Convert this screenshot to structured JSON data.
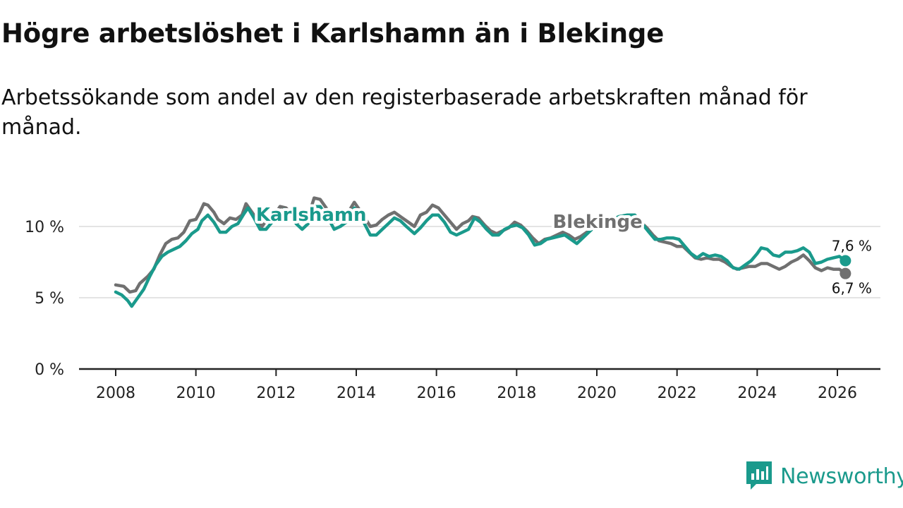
{
  "title": "Högre arbetslöshet i Karlshamn än i Blekinge",
  "subtitle": "Arbetssökande som andel av den registerbaserade arbetskraften månad för månad.",
  "brand": "Newsworthy",
  "colors": {
    "karlshamn": "#1a9a8c",
    "blekinge": "#707070",
    "grid": "#dcdcdc",
    "axis": "#222222"
  },
  "chart_data": {
    "type": "line",
    "title": "Högre arbetslöshet i Karlshamn än i Blekinge",
    "xlabel": "",
    "ylabel": "",
    "xlim": [
      2007.6,
      2027.1
    ],
    "ylim": [
      0,
      12.5
    ],
    "grid": true,
    "x_ticks": [
      2008,
      2010,
      2012,
      2014,
      2016,
      2018,
      2020,
      2022,
      2024,
      2026
    ],
    "x_tick_labels": [
      "2008",
      "2010",
      "2012",
      "2014",
      "2016",
      "2018",
      "2020",
      "2022",
      "2024",
      "2026"
    ],
    "y_ticks": [
      0,
      5,
      10
    ],
    "y_tick_labels": [
      "0 %",
      "5 %",
      "10 %"
    ],
    "series": [
      {
        "name": "Blekinge",
        "label": "Blekinge",
        "color": "#707070",
        "end_label": "6,7 %",
        "points": [
          [
            2008.0,
            5.9
          ],
          [
            2008.2,
            5.8
          ],
          [
            2008.35,
            5.4
          ],
          [
            2008.5,
            5.5
          ],
          [
            2008.6,
            6.0
          ],
          [
            2008.8,
            6.5
          ],
          [
            2008.95,
            7.0
          ],
          [
            2009.1,
            8.0
          ],
          [
            2009.25,
            8.8
          ],
          [
            2009.4,
            9.1
          ],
          [
            2009.55,
            9.2
          ],
          [
            2009.7,
            9.6
          ],
          [
            2009.85,
            10.4
          ],
          [
            2010.0,
            10.5
          ],
          [
            2010.1,
            11.0
          ],
          [
            2010.2,
            11.6
          ],
          [
            2010.3,
            11.5
          ],
          [
            2010.45,
            11.0
          ],
          [
            2010.55,
            10.5
          ],
          [
            2010.7,
            10.2
          ],
          [
            2010.85,
            10.6
          ],
          [
            2011.0,
            10.5
          ],
          [
            2011.15,
            10.8
          ],
          [
            2011.25,
            11.6
          ],
          [
            2011.35,
            11.2
          ],
          [
            2011.5,
            10.6
          ],
          [
            2011.65,
            10.0
          ],
          [
            2011.8,
            10.6
          ],
          [
            2011.95,
            10.8
          ],
          [
            2012.1,
            11.4
          ],
          [
            2012.25,
            11.3
          ],
          [
            2012.4,
            10.8
          ],
          [
            2012.55,
            10.3
          ],
          [
            2012.7,
            10.4
          ],
          [
            2012.85,
            11.1
          ],
          [
            2012.95,
            12.0
          ],
          [
            2013.1,
            11.9
          ],
          [
            2013.25,
            11.3
          ],
          [
            2013.45,
            10.3
          ],
          [
            2013.6,
            10.6
          ],
          [
            2013.8,
            11.0
          ],
          [
            2013.95,
            11.7
          ],
          [
            2014.15,
            10.9
          ],
          [
            2014.35,
            10.0
          ],
          [
            2014.5,
            10.1
          ],
          [
            2014.65,
            10.5
          ],
          [
            2014.8,
            10.8
          ],
          [
            2014.95,
            11.0
          ],
          [
            2015.15,
            10.6
          ],
          [
            2015.3,
            10.3
          ],
          [
            2015.45,
            10.0
          ],
          [
            2015.6,
            10.8
          ],
          [
            2015.75,
            11.0
          ],
          [
            2015.9,
            11.5
          ],
          [
            2016.05,
            11.3
          ],
          [
            2016.2,
            10.8
          ],
          [
            2016.35,
            10.3
          ],
          [
            2016.5,
            9.8
          ],
          [
            2016.65,
            10.2
          ],
          [
            2016.8,
            10.4
          ],
          [
            2016.9,
            10.7
          ],
          [
            2017.05,
            10.6
          ],
          [
            2017.2,
            10.1
          ],
          [
            2017.35,
            9.7
          ],
          [
            2017.5,
            9.5
          ],
          [
            2017.65,
            9.7
          ],
          [
            2017.8,
            9.9
          ],
          [
            2017.95,
            10.3
          ],
          [
            2018.1,
            10.1
          ],
          [
            2018.25,
            9.7
          ],
          [
            2018.4,
            9.2
          ],
          [
            2018.55,
            8.8
          ],
          [
            2018.7,
            9.1
          ],
          [
            2018.85,
            9.2
          ],
          [
            2019.0,
            9.4
          ],
          [
            2019.15,
            9.6
          ],
          [
            2019.3,
            9.4
          ],
          [
            2019.45,
            9.1
          ],
          [
            2019.6,
            9.3
          ],
          [
            2019.75,
            9.6
          ],
          [
            2019.9,
            9.9
          ],
          [
            2020.1,
            10.1
          ],
          [
            2020.3,
            10.4
          ],
          [
            2020.5,
            10.6
          ],
          [
            2020.7,
            10.5
          ],
          [
            2020.9,
            10.5
          ],
          [
            2021.1,
            10.3
          ],
          [
            2021.25,
            9.9
          ],
          [
            2021.4,
            9.4
          ],
          [
            2021.55,
            9.0
          ],
          [
            2021.7,
            8.9
          ],
          [
            2021.85,
            8.8
          ],
          [
            2022.0,
            8.6
          ],
          [
            2022.15,
            8.6
          ],
          [
            2022.3,
            8.2
          ],
          [
            2022.45,
            7.8
          ],
          [
            2022.6,
            7.7
          ],
          [
            2022.75,
            7.8
          ],
          [
            2022.9,
            7.7
          ],
          [
            2023.05,
            7.7
          ],
          [
            2023.2,
            7.5
          ],
          [
            2023.35,
            7.2
          ],
          [
            2023.5,
            7.0
          ],
          [
            2023.65,
            7.1
          ],
          [
            2023.8,
            7.2
          ],
          [
            2023.95,
            7.2
          ],
          [
            2024.1,
            7.4
          ],
          [
            2024.25,
            7.4
          ],
          [
            2024.4,
            7.2
          ],
          [
            2024.55,
            7.0
          ],
          [
            2024.7,
            7.2
          ],
          [
            2024.85,
            7.5
          ],
          [
            2025.0,
            7.7
          ],
          [
            2025.15,
            8.0
          ],
          [
            2025.3,
            7.6
          ],
          [
            2025.45,
            7.1
          ],
          [
            2025.6,
            6.9
          ],
          [
            2025.75,
            7.1
          ],
          [
            2025.9,
            7.0
          ],
          [
            2026.05,
            7.0
          ],
          [
            2026.2,
            6.7
          ]
        ]
      },
      {
        "name": "Karlshamn",
        "label": "Karlshamn",
        "color": "#1a9a8c",
        "end_label": "7,6 %",
        "points": [
          [
            2008.0,
            5.4
          ],
          [
            2008.15,
            5.2
          ],
          [
            2008.3,
            4.8
          ],
          [
            2008.4,
            4.4
          ],
          [
            2008.55,
            5.0
          ],
          [
            2008.7,
            5.6
          ],
          [
            2008.85,
            6.5
          ],
          [
            2009.0,
            7.3
          ],
          [
            2009.15,
            7.9
          ],
          [
            2009.3,
            8.2
          ],
          [
            2009.45,
            8.4
          ],
          [
            2009.6,
            8.6
          ],
          [
            2009.75,
            9.0
          ],
          [
            2009.9,
            9.5
          ],
          [
            2010.05,
            9.8
          ],
          [
            2010.15,
            10.4
          ],
          [
            2010.3,
            10.8
          ],
          [
            2010.45,
            10.3
          ],
          [
            2010.6,
            9.6
          ],
          [
            2010.75,
            9.6
          ],
          [
            2010.9,
            10.0
          ],
          [
            2011.05,
            10.2
          ],
          [
            2011.2,
            10.9
          ],
          [
            2011.3,
            11.3
          ],
          [
            2011.45,
            10.6
          ],
          [
            2011.6,
            9.8
          ],
          [
            2011.75,
            9.8
          ],
          [
            2011.9,
            10.3
          ],
          [
            2012.05,
            10.7
          ],
          [
            2012.2,
            11.2
          ],
          [
            2012.35,
            10.9
          ],
          [
            2012.5,
            10.2
          ],
          [
            2012.65,
            9.8
          ],
          [
            2012.8,
            10.2
          ],
          [
            2012.95,
            11.4
          ],
          [
            2013.1,
            11.4
          ],
          [
            2013.3,
            10.6
          ],
          [
            2013.45,
            9.8
          ],
          [
            2013.6,
            10.0
          ],
          [
            2013.8,
            10.4
          ],
          [
            2013.95,
            11.3
          ],
          [
            2014.15,
            10.5
          ],
          [
            2014.35,
            9.4
          ],
          [
            2014.5,
            9.4
          ],
          [
            2014.65,
            9.8
          ],
          [
            2014.8,
            10.2
          ],
          [
            2014.95,
            10.6
          ],
          [
            2015.1,
            10.4
          ],
          [
            2015.25,
            10.0
          ],
          [
            2015.45,
            9.5
          ],
          [
            2015.6,
            9.9
          ],
          [
            2015.75,
            10.4
          ],
          [
            2015.9,
            10.8
          ],
          [
            2016.05,
            10.8
          ],
          [
            2016.2,
            10.3
          ],
          [
            2016.35,
            9.6
          ],
          [
            2016.5,
            9.4
          ],
          [
            2016.65,
            9.6
          ],
          [
            2016.8,
            9.8
          ],
          [
            2016.95,
            10.6
          ],
          [
            2017.1,
            10.3
          ],
          [
            2017.25,
            9.8
          ],
          [
            2017.4,
            9.4
          ],
          [
            2017.55,
            9.4
          ],
          [
            2017.7,
            9.8
          ],
          [
            2017.85,
            10.0
          ],
          [
            2018.0,
            10.1
          ],
          [
            2018.15,
            9.9
          ],
          [
            2018.3,
            9.4
          ],
          [
            2018.45,
            8.7
          ],
          [
            2018.6,
            8.8
          ],
          [
            2018.75,
            9.1
          ],
          [
            2018.9,
            9.2
          ],
          [
            2019.05,
            9.3
          ],
          [
            2019.2,
            9.4
          ],
          [
            2019.35,
            9.1
          ],
          [
            2019.5,
            8.8
          ],
          [
            2019.65,
            9.2
          ],
          [
            2019.8,
            9.6
          ],
          [
            2019.95,
            10.0
          ],
          [
            2020.15,
            10.3
          ],
          [
            2020.35,
            10.4
          ],
          [
            2020.55,
            10.7
          ],
          [
            2020.75,
            10.8
          ],
          [
            2020.95,
            10.8
          ],
          [
            2021.1,
            10.3
          ],
          [
            2021.3,
            9.6
          ],
          [
            2021.45,
            9.1
          ],
          [
            2021.6,
            9.1
          ],
          [
            2021.75,
            9.2
          ],
          [
            2021.9,
            9.2
          ],
          [
            2022.05,
            9.1
          ],
          [
            2022.2,
            8.6
          ],
          [
            2022.35,
            8.1
          ],
          [
            2022.5,
            7.8
          ],
          [
            2022.65,
            8.1
          ],
          [
            2022.8,
            7.9
          ],
          [
            2022.95,
            8.0
          ],
          [
            2023.1,
            7.9
          ],
          [
            2023.25,
            7.6
          ],
          [
            2023.4,
            7.1
          ],
          [
            2023.55,
            7.0
          ],
          [
            2023.7,
            7.3
          ],
          [
            2023.85,
            7.6
          ],
          [
            2024.0,
            8.1
          ],
          [
            2024.1,
            8.5
          ],
          [
            2024.25,
            8.4
          ],
          [
            2024.4,
            8.0
          ],
          [
            2024.55,
            7.9
          ],
          [
            2024.7,
            8.2
          ],
          [
            2024.85,
            8.2
          ],
          [
            2025.0,
            8.3
          ],
          [
            2025.15,
            8.5
          ],
          [
            2025.3,
            8.2
          ],
          [
            2025.45,
            7.4
          ],
          [
            2025.6,
            7.5
          ],
          [
            2025.75,
            7.7
          ],
          [
            2025.9,
            7.8
          ],
          [
            2026.05,
            7.9
          ],
          [
            2026.2,
            7.6
          ]
        ]
      }
    ]
  }
}
